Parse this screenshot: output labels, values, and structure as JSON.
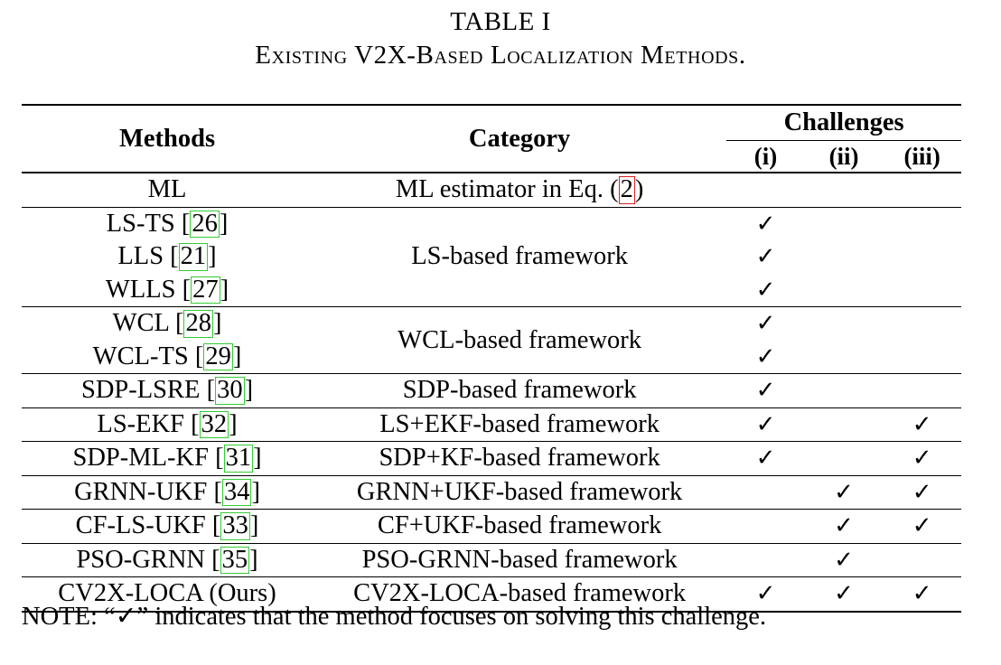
{
  "caption": {
    "title": "TABLE I",
    "subtitle": "Existing V2X-Based Localization Methods."
  },
  "headers": {
    "methods": "Methods",
    "category": "Category",
    "challenges": "Challenges",
    "sub": [
      "(i)",
      "(ii)",
      "(iii)"
    ]
  },
  "check_symbol": "✓",
  "rows": [
    {
      "name": "ML",
      "ref": "",
      "category": "ML estimator in Eq. (",
      "eq": "2",
      "cat_suffix": ")",
      "checks": [
        false,
        false,
        false
      ]
    },
    {
      "name": "LS-TS ",
      "ref": "26",
      "category": "LS-based framework",
      "checks": [
        true,
        false,
        false
      ]
    },
    {
      "name": "LLS ",
      "ref": "21",
      "checks": [
        true,
        false,
        false
      ]
    },
    {
      "name": "WLLS ",
      "ref": "27",
      "checks": [
        true,
        false,
        false
      ]
    },
    {
      "name": "WCL ",
      "ref": "28",
      "category": "WCL-based framework",
      "checks": [
        true,
        false,
        false
      ]
    },
    {
      "name": "WCL-TS ",
      "ref": "29",
      "checks": [
        true,
        false,
        false
      ]
    },
    {
      "name": "SDP-LSRE ",
      "ref": "30",
      "category": "SDP-based framework",
      "checks": [
        true,
        false,
        false
      ]
    },
    {
      "name": "LS-EKF ",
      "ref": "32",
      "category": "LS+EKF-based framework",
      "checks": [
        true,
        false,
        true
      ]
    },
    {
      "name": "SDP-ML-KF ",
      "ref": "31",
      "category": "SDP+KF-based framework",
      "checks": [
        true,
        false,
        true
      ]
    },
    {
      "name": "GRNN-UKF ",
      "ref": "34",
      "category": "GRNN+UKF-based framework",
      "checks": [
        false,
        true,
        true
      ]
    },
    {
      "name": "CF-LS-UKF ",
      "ref": "33",
      "category": "CF+UKF-based framework",
      "checks": [
        false,
        true,
        true
      ]
    },
    {
      "name": "PSO-GRNN ",
      "ref": "35",
      "category": "PSO-GRNN-based framework",
      "checks": [
        false,
        true,
        false
      ]
    },
    {
      "name": "CV2X-LOCA (Ours)",
      "ref": "",
      "category": "CV2X-LOCA-based framework",
      "checks": [
        true,
        true,
        true
      ]
    }
  ],
  "note": "NOTE: “✓” indicates that the method focuses on solving this challenge."
}
